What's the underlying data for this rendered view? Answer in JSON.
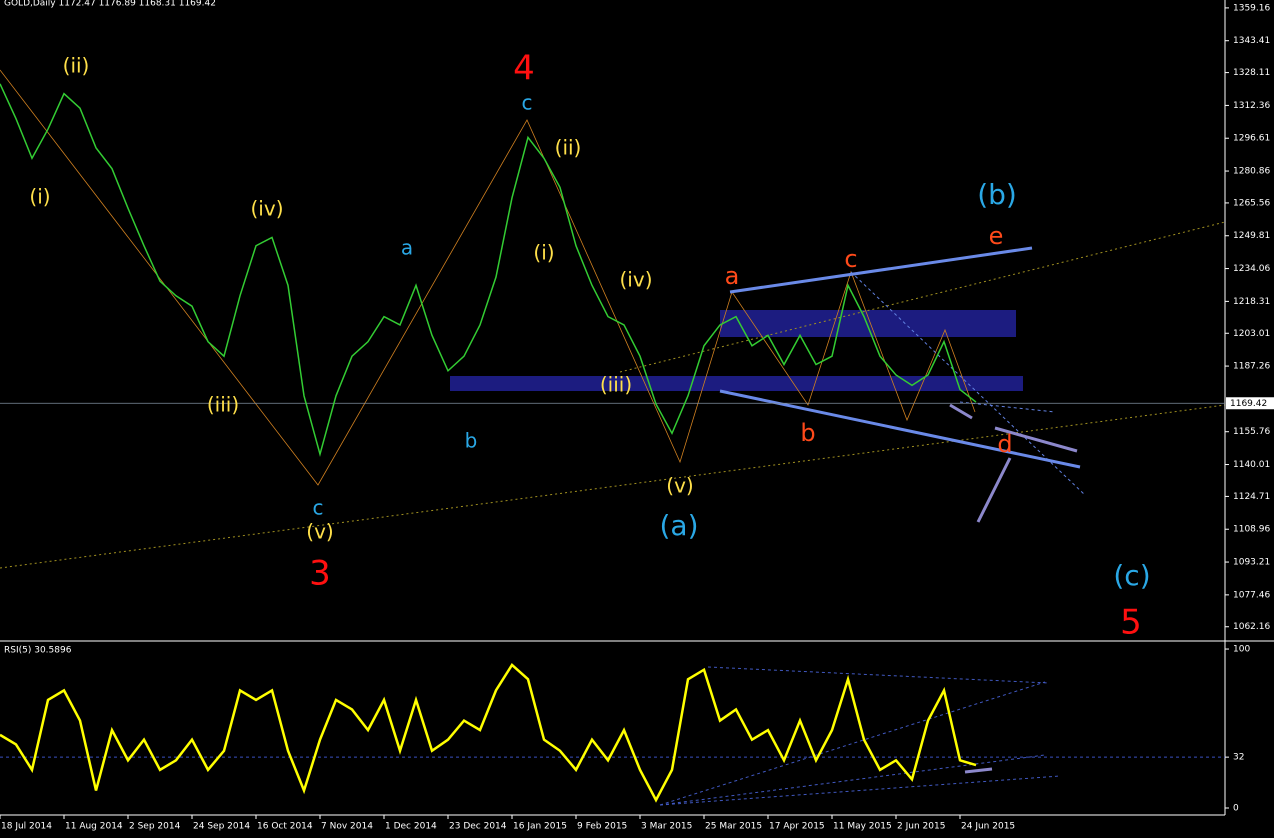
{
  "chart_data": [
    {
      "type": "line",
      "title": "GOLD,Daily  1172.47 1176.89 1168.31 1169.42",
      "x": [
        0,
        4,
        8,
        12,
        16,
        20,
        24,
        28,
        32,
        36,
        40,
        44,
        48,
        52,
        56,
        60,
        64,
        68,
        72,
        76,
        80,
        84,
        88,
        92,
        96,
        100,
        104,
        108,
        112,
        116,
        120,
        124,
        128,
        132,
        136,
        140,
        144,
        148,
        152,
        156,
        160,
        164,
        168,
        172,
        176,
        180,
        184,
        188,
        192,
        196,
        200,
        204,
        208,
        212,
        216,
        220,
        224,
        228,
        232,
        236,
        240,
        244
      ],
      "series": [
        {
          "color": "#33cc33",
          "values": [
            1322.7,
            1306,
            1287,
            1301,
            1318,
            1311,
            1292,
            1282,
            1263,
            1245,
            1228,
            1221,
            1216,
            1199,
            1192,
            1221,
            1245,
            1249,
            1226,
            1173,
            1145,
            1173,
            1192,
            1199,
            1211,
            1207,
            1226,
            1202,
            1185,
            1192,
            1207,
            1230,
            1268,
            1297,
            1287,
            1273,
            1245,
            1226,
            1211,
            1207,
            1192,
            1169,
            1155,
            1173,
            1197,
            1207,
            1211,
            1197,
            1202,
            1188,
            1202,
            1188,
            1192,
            1226,
            1211,
            1192,
            1183,
            1178,
            1183,
            1199,
            1176,
            1170
          ]
        }
      ],
      "xlim": [
        0,
        306.25
      ],
      "xticks": [
        {
          "value": 0,
          "label": "18 Jul 2014"
        },
        {
          "value": 16,
          "label": "11 Aug 2014"
        },
        {
          "value": 32,
          "label": "2 Sep 2014"
        },
        {
          "value": 48,
          "label": "24 Sep 2014"
        },
        {
          "value": 64,
          "label": "16 Oct 2014"
        },
        {
          "value": 80,
          "label": "7 Nov 2014"
        },
        {
          "value": 96,
          "label": "1 Dec 2014"
        },
        {
          "value": 112,
          "label": "23 Dec 2014"
        },
        {
          "value": 128,
          "label": "16 Jan 2015"
        },
        {
          "value": 144,
          "label": "9 Feb 2015"
        },
        {
          "value": 160,
          "label": "3 Mar 2015"
        },
        {
          "value": 176,
          "label": "25 Mar 2015"
        },
        {
          "value": 192,
          "label": "17 Apr 2015"
        },
        {
          "value": 208,
          "label": "11 May 2015"
        },
        {
          "value": 224,
          "label": "2 Jun 2015"
        },
        {
          "value": 240,
          "label": "24 Jun 2015"
        }
      ],
      "ylim": [
        1055.8,
        1362.95
      ],
      "yticks": [
        1359.16,
        1343.41,
        1328.11,
        1312.36,
        1296.61,
        1280.86,
        1265.56,
        1249.81,
        1234.06,
        1218.31,
        1203.01,
        1187.26,
        1155.76,
        1140.01,
        1124.71,
        1108.96,
        1093.21,
        1077.46,
        1062.16
      ],
      "last_price": 1169.42,
      "annotations": [
        {
          "text": "(ii)",
          "color": "#ffe04a"
        },
        {
          "text": "(i)",
          "color": "#ffe04a"
        },
        {
          "text": "(iv)",
          "color": "#ffe04a"
        },
        {
          "text": "(iii)",
          "color": "#ffe04a"
        },
        {
          "text": "a",
          "color": "#2aa8e6"
        },
        {
          "text": "b",
          "color": "#2aa8e6"
        },
        {
          "text": "c",
          "color": "#2aa8e6"
        },
        {
          "text": "(v)",
          "color": "#ffe04a"
        },
        {
          "text": "3",
          "color": "#ff1010"
        },
        {
          "text": "4",
          "color": "#ff1010"
        },
        {
          "text": "c",
          "color": "#2aa8e6"
        },
        {
          "text": "(ii)",
          "color": "#ffe04a"
        },
        {
          "text": "(i)",
          "color": "#ffe04a"
        },
        {
          "text": "(iv)",
          "color": "#ffe04a"
        },
        {
          "text": "(iii)",
          "color": "#ffe04a"
        },
        {
          "text": "(v)",
          "color": "#ffe04a"
        },
        {
          "text": "(a)",
          "color": "#2aa8e6"
        },
        {
          "text": "a",
          "color": "#ff4a1a"
        },
        {
          "text": "b",
          "color": "#ff4a1a"
        },
        {
          "text": "c",
          "color": "#ff4a1a"
        },
        {
          "text": "(b)",
          "color": "#2aa8e6"
        },
        {
          "text": "e",
          "color": "#ff4a1a"
        },
        {
          "text": "d",
          "color": "#ff4a1a"
        },
        {
          "text": "(c)",
          "color": "#2aa8e6"
        },
        {
          "text": "5",
          "color": "#ff1010"
        }
      ]
    },
    {
      "type": "line",
      "title": "RSI(5) 30.5896",
      "x": [
        0,
        4,
        8,
        12,
        16,
        20,
        24,
        28,
        32,
        36,
        40,
        44,
        48,
        52,
        56,
        60,
        64,
        68,
        72,
        76,
        80,
        84,
        88,
        92,
        96,
        100,
        104,
        108,
        112,
        116,
        120,
        124,
        128,
        132,
        136,
        140,
        144,
        148,
        152,
        156,
        160,
        164,
        168,
        172,
        176,
        180,
        184,
        188,
        192,
        196,
        200,
        204,
        208,
        212,
        216,
        220,
        224,
        228,
        232,
        236,
        240,
        244
      ],
      "series": [
        {
          "color": "#ffff00",
          "values": [
            46,
            40,
            24,
            68,
            74,
            55,
            11,
            49,
            30,
            43,
            24,
            30,
            43,
            24,
            36,
            74,
            68,
            74,
            36,
            11,
            43,
            68,
            62,
            49,
            68,
            36,
            68,
            36,
            43,
            55,
            49,
            74,
            90,
            81,
            43,
            36,
            24,
            43,
            30,
            49,
            24,
            5,
            24,
            81,
            87,
            55,
            62,
            43,
            49,
            30,
            55,
            30,
            49,
            81,
            43,
            24,
            30,
            18,
            55,
            74,
            30,
            27
          ]
        }
      ],
      "xlim": [
        0,
        306.25
      ],
      "ylim": [
        -4.4,
        103.8
      ],
      "yticks": [
        100,
        32,
        0
      ]
    }
  ]
}
